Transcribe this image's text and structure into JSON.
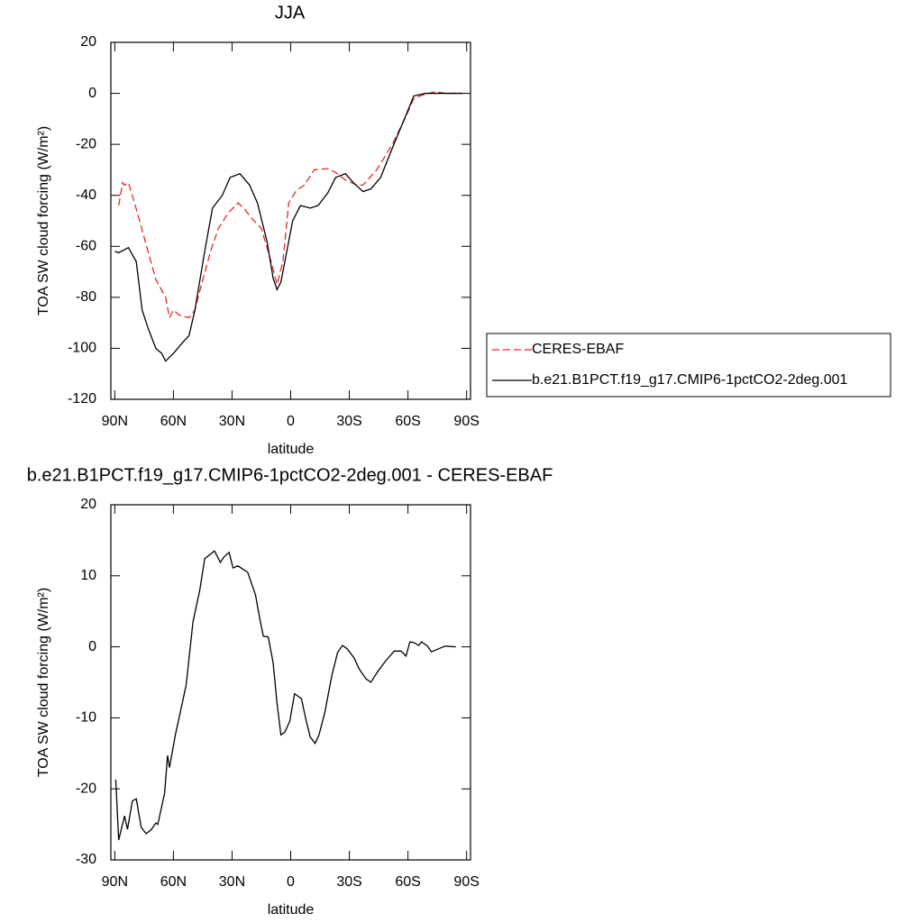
{
  "chart_data": [
    {
      "type": "line",
      "title": "JJA",
      "xlabel": "latitude",
      "ylabel": "TOA SW cloud forcing (W/m²)",
      "xlim": [
        92,
        -92
      ],
      "xticks": [
        {
          "value": 90,
          "label": "90N"
        },
        {
          "value": 60,
          "label": "60N"
        },
        {
          "value": 30,
          "label": "30N"
        },
        0,
        {
          "value": -30,
          "label": "30S"
        },
        {
          "value": -60,
          "label": "60S"
        },
        {
          "value": -90,
          "label": "90S"
        }
      ],
      "ylim": [
        -120,
        20
      ],
      "yticks": [
        -120,
        -100,
        -80,
        -60,
        -40,
        -20,
        0,
        20
      ],
      "legend": "right",
      "series": [
        {
          "name": "CERES-EBAF",
          "color": "#e8262b",
          "dash": true,
          "x": [
            88,
            86,
            85,
            83,
            78,
            73,
            69,
            64,
            62,
            60,
            57,
            52,
            49,
            46,
            41,
            37,
            32,
            27,
            24,
            20,
            15,
            10,
            7,
            4,
            1,
            -3,
            -7,
            -12,
            -19,
            -23,
            -28,
            -34,
            -37,
            -44,
            -52,
            -59,
            -63,
            -68,
            -74,
            -79,
            -88
          ],
          "values": [
            -44,
            -35,
            -36,
            -35,
            -48,
            -62,
            -73,
            -80,
            -88,
            -85,
            -87,
            -88,
            -85,
            -76,
            -62,
            -53,
            -47,
            -43,
            -45,
            -49,
            -53,
            -66,
            -75,
            -66,
            -43,
            -38,
            -36,
            -30,
            -29.5,
            -31,
            -34,
            -36,
            -36,
            -30,
            -20,
            -9,
            -2,
            -0.5,
            0.7,
            0,
            0
          ]
        },
        {
          "name": "b.e21.B1PCT.f19_g17.CMIP6-1pctCO2-2deg.001",
          "color": "#000000",
          "dash": false,
          "x": [
            90,
            88,
            83,
            79,
            76,
            73,
            69,
            66,
            64,
            60,
            55,
            52,
            49,
            44,
            40,
            35,
            31,
            26,
            21,
            17,
            12,
            9,
            7,
            5,
            2,
            -1,
            -5,
            -10,
            -14,
            -19,
            -23,
            -28,
            -32,
            -37,
            -41,
            -46,
            -52,
            -59,
            -63,
            -69,
            -79,
            -88
          ],
          "values": [
            -62,
            -62.5,
            -60.5,
            -66,
            -85,
            -92,
            -100,
            -102,
            -105,
            -102,
            -97.5,
            -95,
            -85,
            -62,
            -45,
            -40,
            -33,
            -31.5,
            -36,
            -43,
            -58.5,
            -72.5,
            -77,
            -74,
            -62,
            -50,
            -44,
            -45,
            -44,
            -39,
            -33,
            -31.5,
            -35,
            -38.5,
            -37.5,
            -33,
            -21.5,
            -8.5,
            -1,
            0,
            0,
            0
          ]
        }
      ]
    },
    {
      "type": "line",
      "title": "b.e21.B1PCT.f19_g17.CMIP6-1pctCO2-2deg.001 - CERES-EBAF",
      "xlabel": "latitude",
      "ylabel": "TOA SW cloud forcing (W/m²)",
      "xlim": [
        92,
        -92
      ],
      "xticks": [
        {
          "value": 90,
          "label": "90N"
        },
        {
          "value": 60,
          "label": "60N"
        },
        {
          "value": 30,
          "label": "30N"
        },
        0,
        {
          "value": -30,
          "label": "30S"
        },
        {
          "value": -60,
          "label": "60S"
        },
        {
          "value": -90,
          "label": "90S"
        }
      ],
      "ylim": [
        -30,
        20
      ],
      "yticks": [
        -30,
        -20,
        -10,
        0,
        10,
        20
      ],
      "series": [
        {
          "color": "#000000",
          "dash": false,
          "x": [
            89.5,
            88,
            85,
            83.5,
            81,
            79,
            76.5,
            74,
            71.5,
            69,
            68,
            64.5,
            63,
            62,
            59,
            56,
            53.5,
            50,
            46.5,
            44,
            39,
            36,
            34,
            31.5,
            29.5,
            27,
            22,
            18,
            15.5,
            14,
            11.5,
            9,
            7,
            5,
            3,
            0.5,
            -2,
            -5.5,
            -8,
            -10,
            -12.5,
            -14.5,
            -17.5,
            -21,
            -24,
            -26.5,
            -29,
            -32.5,
            -35,
            -38.5,
            -41,
            -44.5,
            -48.5,
            -53,
            -56.5,
            -59,
            -61,
            -63,
            -65.5,
            -67,
            -70,
            -72,
            -75.5,
            -79,
            -84.5
          ],
          "values": [
            -18.7,
            -27.2,
            -23.8,
            -25.7,
            -21.7,
            -21.4,
            -25.4,
            -26.3,
            -25.8,
            -24.8,
            -25,
            -20.6,
            -15.3,
            -17,
            -12.4,
            -8.6,
            -5.4,
            3.5,
            8,
            12.4,
            13.5,
            11.9,
            12.7,
            13.3,
            11.1,
            11.4,
            10.5,
            7.3,
            3.5,
            1.5,
            1.4,
            -2.2,
            -7.9,
            -12.4,
            -12,
            -10.5,
            -6.6,
            -7.3,
            -10.5,
            -12.7,
            -13.6,
            -12.4,
            -9.2,
            -4.1,
            -0.8,
            0.2,
            -0.3,
            -1.6,
            -3.1,
            -4.5,
            -5,
            -3.5,
            -2,
            -0.6,
            -0.6,
            -1.3,
            0.7,
            0.6,
            0.2,
            0.7,
            0.1,
            -0.7,
            -0.3,
            0.1,
            0
          ]
        }
      ]
    }
  ]
}
